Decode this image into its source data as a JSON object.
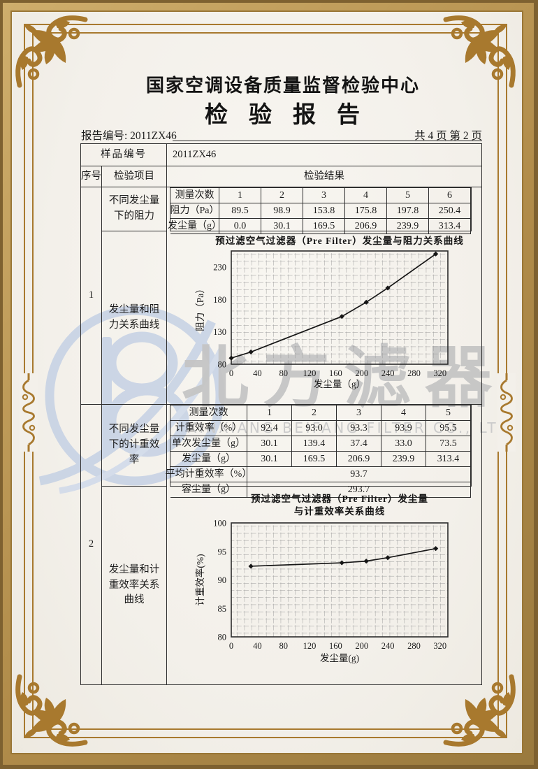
{
  "header": {
    "org": "国家空调设备质量监督检验中心",
    "title": "检验报告",
    "report_no_label": "报告编号: 2011ZX46",
    "page_info": "共 4 页 第 2 页"
  },
  "sample": {
    "label": "样品编号",
    "value": "2011ZX46"
  },
  "main_table": {
    "col_seq": "序号",
    "col_item": "检验项目",
    "col_result": "检验结果",
    "group1": {
      "seq": "1",
      "item1": "不同发尘量下的阻力",
      "item2": "发尘量和阻力关系曲线",
      "measurements": {
        "row_labels": [
          "测量次数",
          "阻力（Pa）",
          "发尘量（g）"
        ],
        "columns": [
          "1",
          "2",
          "3",
          "4",
          "5",
          "6"
        ],
        "resistance": [
          "89.5",
          "98.9",
          "153.8",
          "175.8",
          "197.8",
          "250.4"
        ],
        "dust": [
          "0.0",
          "30.1",
          "169.5",
          "206.9",
          "239.9",
          "313.4"
        ]
      }
    },
    "group2": {
      "seq": "2",
      "item1": "不同发尘量下的计重效率",
      "item2": "发尘量和计重效率关系曲线",
      "measurements": {
        "row_labels": [
          "测量次数",
          "计重效率（%）",
          "单次发尘量（g）",
          "发尘量（g）",
          "平均计重效率（%）",
          "容尘量（g）"
        ],
        "columns": [
          "1",
          "2",
          "3",
          "4",
          "5"
        ],
        "efficiency": [
          "92.4",
          "93.0",
          "93.3",
          "93.9",
          "95.5"
        ],
        "single_dust": [
          "30.1",
          "139.4",
          "37.4",
          "33.0",
          "73.5"
        ],
        "dust": [
          "30.1",
          "169.5",
          "206.9",
          "239.9",
          "313.4"
        ],
        "avg_efficiency": "93.7",
        "dust_capacity": "293.7"
      }
    }
  },
  "chart_data": [
    {
      "type": "line",
      "title": "预过滤空气过滤器（Pre Filter）发尘量与阻力关系曲线",
      "xlabel": "发尘量（g）",
      "ylabel": "阻力（Pa）",
      "x": [
        0,
        30.1,
        169.5,
        206.9,
        239.9,
        313.4
      ],
      "y": [
        89.5,
        98.9,
        153.8,
        175.8,
        197.8,
        250.4
      ],
      "xlim": [
        0,
        332
      ],
      "ylim": [
        80,
        255
      ],
      "xticks": [
        0,
        40,
        80,
        120,
        160,
        200,
        240,
        280,
        320
      ],
      "yticks": [
        80,
        130,
        180,
        230
      ],
      "grid": true,
      "legend": false,
      "marker": "diamond"
    },
    {
      "type": "line",
      "title": "预过滤空气过滤器（Pre Filter）发尘量",
      "title2": "与计重效率关系曲线",
      "xlabel": "发尘量(g)",
      "ylabel": "计重效率(%)",
      "x": [
        30.1,
        169.5,
        206.9,
        239.9,
        313.4
      ],
      "y": [
        92.4,
        93.0,
        93.3,
        93.9,
        95.5
      ],
      "xlim": [
        0,
        332
      ],
      "ylim": [
        80,
        100
      ],
      "xticks": [
        0,
        40,
        80,
        120,
        160,
        200,
        240,
        280,
        320
      ],
      "yticks": [
        80,
        85,
        90,
        95,
        100
      ],
      "grid": true,
      "legend": false,
      "marker": "diamond"
    }
  ],
  "watermark": {
    "cn": "北方滤器",
    "en": "XINXIANG BEIFANG FILTER CO., LTD.",
    "logo": "beifang-b-logo"
  },
  "colors": {
    "frame_gold": "#a8792e",
    "band_light": "#c4a260",
    "band_dark": "#7e6130",
    "watermark_blue": "#c2cfe4",
    "watermark_gray": "#c5c5c5",
    "ink": "#1c1c1c",
    "paper": "#f3f0ea"
  }
}
